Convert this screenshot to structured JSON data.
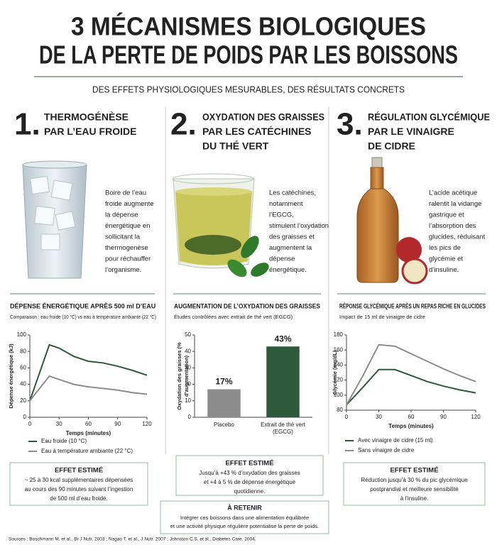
{
  "header": {
    "title_lines": [
      "3 MÉCANISMES BIOLOGIQUES",
      "DE LA PERTE DE POIDS PAR LES BOISSONS"
    ],
    "subtitle": "DES EFFETS PHYSIOLOGIQUES MESURABLES, DES RÉSULTATS CONCRETS"
  },
  "columns": [
    {
      "number": "1.",
      "title_lines": [
        "THERMOGÉNÈSE",
        "PAR L’EAU FROIDE"
      ],
      "description_lines": [
        "Boire de l’eau",
        "froide augmente",
        "la dépense",
        "énergétique en",
        "sollicitant la",
        "thermogenèse",
        "pour réchauffer",
        "l’organisme."
      ]
    },
    {
      "number": "2.",
      "title_lines": [
        "OXYDATION DES GRAISSES",
        "PAR LES CATÉCHINES",
        "DU THÉ VERT"
      ],
      "description_lines": [
        "Les catéchines,",
        "notamment",
        "l’EGCG,",
        "stimulent l’oxydation",
        "des graisses et",
        "augmentent la",
        "dépense",
        "énergétique."
      ]
    },
    {
      "number": "3.",
      "title_lines": [
        "RÉGULATION GLYCÉMIQUE",
        "PAR LE VINAIGRE",
        "DE CIDRE"
      ],
      "description_lines": [
        "L’acide acétique",
        "ralentit la vidange",
        "gastrique et",
        "l’absorption des",
        "glucides, réduisant",
        "les pics de",
        "glycémie et",
        "d’insuline."
      ]
    }
  ],
  "chart_data": [
    {
      "type": "line",
      "title": "DÉPENSE ÉNERGÉTIQUE APRÈS 500 ml D’EAU",
      "subtitle": "Comparaison : eau froide (10 °C) vs eau à température ambiante (22 °C)",
      "x_label": "Temps (minutes)",
      "y_label": "Dépense énergétique (kJ)",
      "x": [
        0,
        20,
        30,
        45,
        60,
        75,
        90,
        105,
        120
      ],
      "xlim": [
        0,
        120
      ],
      "xticks": [
        0,
        30,
        60,
        90,
        120
      ],
      "ylim": [
        0,
        100
      ],
      "yticks": [
        0,
        20,
        40,
        60,
        80,
        100
      ],
      "series": [
        {
          "name": "Eau froide (10 °C)",
          "color": "#2d5a3a",
          "values": [
            20,
            88,
            84,
            74,
            68,
            66,
            62,
            57,
            51
          ]
        },
        {
          "name": "Eau à température ambiante (22 °C)",
          "color": "#8c8c8c",
          "values": [
            20,
            50,
            46,
            40,
            37,
            35,
            33,
            30,
            28
          ]
        }
      ]
    },
    {
      "type": "bar",
      "title": "AUGMENTATION DE L’OXYDATION DES GRAISSES",
      "subtitle": "Études contrôlées avec extrait de thé vert (EGCG)",
      "y_label": "Oxydation des graisses (% d’augmentation)",
      "categories": [
        "Placebo",
        "Extrait de thé vert (EGCG)"
      ],
      "values": [
        17,
        43
      ],
      "value_labels": [
        "17%",
        "43%"
      ],
      "colors": [
        "#8c8c8c",
        "#2d5a3a"
      ],
      "ylim": [
        0,
        50
      ],
      "yticks": [
        0,
        10,
        20,
        30,
        40,
        50
      ]
    },
    {
      "type": "line",
      "title": "RÉPONSE GLYCÉMIQUE APRÈS UN REPAS RICHE EN GLUCIDES",
      "subtitle": "Impact de 15 ml de vinaigre de cidre",
      "x_label": "Temps (minutes)",
      "y_label": "Glycémie (mg/dL)",
      "x": [
        0,
        15,
        30,
        45,
        60,
        75,
        90,
        105,
        120
      ],
      "xlim": [
        0,
        120
      ],
      "xticks": [
        0,
        30,
        60,
        90,
        120
      ],
      "ylim": [
        80,
        180
      ],
      "yticks": [
        80,
        100,
        120,
        140,
        160,
        180
      ],
      "series": [
        {
          "name": "Avec vinaigre de cidre (15 ml)",
          "color": "#2d5a3a",
          "values": [
            87,
            110,
            134,
            134,
            126,
            118,
            112,
            107,
            103
          ]
        },
        {
          "name": "Sans vinaigre de cidre",
          "color": "#8c8c8c",
          "values": [
            87,
            125,
            167,
            165,
            155,
            145,
            135,
            126,
            118
          ]
        }
      ]
    }
  ],
  "effects": [
    {
      "title": "EFFET ESTIMÉ",
      "lines": [
        "~ 25 à 30 kcal supplémentaires dépensées",
        "au cours des 90 minutes suivant l’ingestion",
        "de 500 ml d’eau froide."
      ]
    },
    {
      "title": "EFFET ESTIMÉ",
      "lines": [
        "Jusqu’à +43 % d’oxydation des graisses",
        "et +4 à 5 % de dépense énergétique",
        "quotidienne."
      ]
    },
    {
      "title": "EFFET ESTIMÉ",
      "lines": [
        "Réduction jusqu’à 30 % du pic glycémique",
        "postprandial et meilleure sensibilité",
        "à l’insuline."
      ]
    }
  ],
  "key_takeaway": {
    "title": "À RETENIR",
    "lines": [
      "Intégrer ces boissons dans une alimentation équilibrée",
      "et une activité physique régulière potentialise la perte de poids."
    ]
  },
  "sources": "Sources : Boschmann M. et al., Br J Nutr. 2003 ; Nagao T. et al., J Nutr. 2007 ; Johnston C.S. et al., Diabetes Care. 2004."
}
